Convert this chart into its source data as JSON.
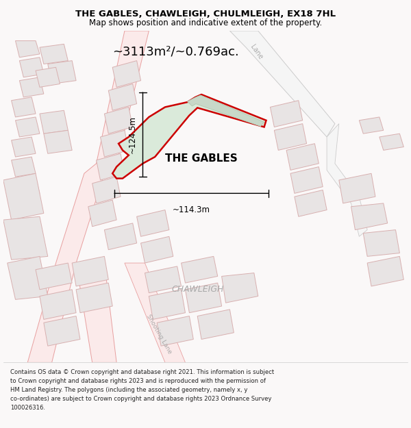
{
  "title": "THE GABLES, CHAWLEIGH, CHULMLEIGH, EX18 7HL",
  "subtitle": "Map shows position and indicative extent of the property.",
  "area_text": "~3113m²/~0.769ac.",
  "property_label": "THE GABLES",
  "town_label": "CHAWLEIGH",
  "dim_vertical": "~124.5m",
  "dim_horizontal": "~114.3m",
  "footer_lines": [
    "Contains OS data © Crown copyright and database right 2021. This information is subject",
    "to Crown copyright and database rights 2023 and is reproduced with the permission of",
    "HM Land Registry. The polygons (including the associated geometry, namely x, y",
    "co-ordinates) are subject to Crown copyright and database rights 2023 Ordnance Survey",
    "100026316."
  ],
  "bg_color": "#faf8f8",
  "map_bg": "#ffffff",
  "road_fill": "#faeaea",
  "road_stroke": "#e8a8a8",
  "property_fill": "#daeada",
  "property_stroke": "#cc0000",
  "building_fill": "#e8e4e4",
  "building_stroke": "#d8b0b0",
  "dim_color": "#000000",
  "text_color": "#000000",
  "footer_color": "#222222",
  "chawleigh_color": "#aaaaaa",
  "lane_color": "#aaaaaa",
  "shooting_lane_color": "#aaaaaa"
}
